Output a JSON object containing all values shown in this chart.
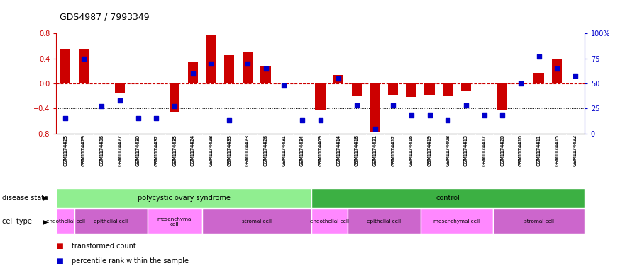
{
  "title": "GDS4987 / 7993349",
  "samples": [
    "GSM1174425",
    "GSM1174429",
    "GSM1174436",
    "GSM1174427",
    "GSM1174430",
    "GSM1174432",
    "GSM1174435",
    "GSM1174424",
    "GSM1174428",
    "GSM1174433",
    "GSM1174423",
    "GSM1174426",
    "GSM1174431",
    "GSM1174434",
    "GSM1174409",
    "GSM1174414",
    "GSM1174418",
    "GSM1174421",
    "GSM1174412",
    "GSM1174416",
    "GSM1174419",
    "GSM1174408",
    "GSM1174413",
    "GSM1174417",
    "GSM1174420",
    "GSM1174410",
    "GSM1174411",
    "GSM1174415",
    "GSM1174422"
  ],
  "bar_values": [
    0.55,
    0.55,
    0.0,
    -0.15,
    0.0,
    0.0,
    -0.45,
    0.35,
    0.78,
    0.45,
    0.5,
    0.27,
    0.0,
    0.0,
    -0.42,
    0.13,
    -0.2,
    -0.78,
    -0.18,
    -0.22,
    -0.18,
    -0.2,
    -0.12,
    0.0,
    -0.42,
    0.0,
    0.17,
    0.38,
    0.0
  ],
  "scatter_values": [
    15,
    75,
    27,
    33,
    15,
    15,
    27,
    60,
    70,
    13,
    70,
    65,
    48,
    13,
    13,
    55,
    28,
    5,
    28,
    18,
    18,
    13,
    28,
    18,
    18,
    50,
    77,
    65,
    58
  ],
  "disease_state_groups": [
    {
      "label": "polycystic ovary syndrome",
      "start": 0,
      "end": 13,
      "color": "#90ee90"
    },
    {
      "label": "control",
      "start": 14,
      "end": 28,
      "color": "#3cb043"
    }
  ],
  "cell_type_groups": [
    {
      "label": "endothelial cell",
      "start": 0,
      "end": 0,
      "color": "#ff88ff"
    },
    {
      "label": "epithelial cell",
      "start": 1,
      "end": 4,
      "color": "#cc66cc"
    },
    {
      "label": "mesenchymal\ncell",
      "start": 5,
      "end": 7,
      "color": "#ff88ff"
    },
    {
      "label": "stromal cell",
      "start": 8,
      "end": 13,
      "color": "#cc66cc"
    },
    {
      "label": "endothelial cell",
      "start": 14,
      "end": 15,
      "color": "#ff88ff"
    },
    {
      "label": "epithelial cell",
      "start": 16,
      "end": 19,
      "color": "#cc66cc"
    },
    {
      "label": "mesenchymal cell",
      "start": 20,
      "end": 23,
      "color": "#ff88ff"
    },
    {
      "label": "stromal cell",
      "start": 24,
      "end": 28,
      "color": "#cc66cc"
    }
  ],
  "ylim": [
    -0.8,
    0.8
  ],
  "y2lim": [
    0,
    100
  ],
  "yticks": [
    -0.8,
    -0.4,
    0.0,
    0.4,
    0.8
  ],
  "y2ticks": [
    0,
    25,
    50,
    75,
    100
  ],
  "bar_color": "#cc0000",
  "scatter_color": "#0000cc",
  "background_color": "#ffffff",
  "plot_bg": "#ffffff",
  "tick_bg": "#d8d8d8",
  "legend_bar_label": "transformed count",
  "legend_scatter_label": "percentile rank within the sample"
}
